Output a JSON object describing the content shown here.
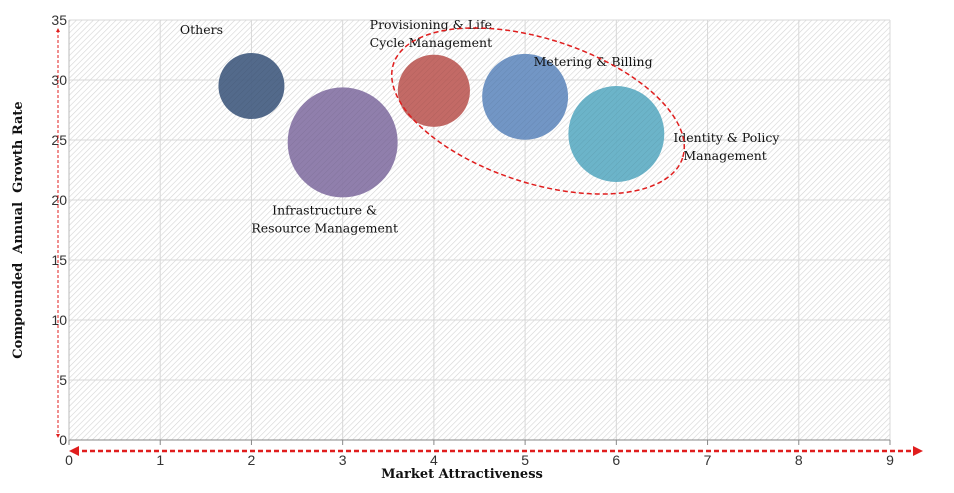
{
  "chart_data": {
    "type": "bubble",
    "xlabel": "Market Attractiveness",
    "ylabel": "Compounded  Annual  Growth Rate",
    "xlim": [
      0,
      9
    ],
    "ylim": [
      0,
      35
    ],
    "xticks": [
      "0",
      "1",
      "2",
      "3",
      "4",
      "5",
      "6",
      "7",
      "8",
      "9"
    ],
    "yticks": [
      "0",
      "5",
      "10",
      "15",
      "20",
      "25",
      "30",
      "35"
    ],
    "grid": true,
    "background": "diagonal hatch",
    "series": [
      {
        "name": "Others",
        "label_lines": [
          "Others"
        ],
        "x": 2,
        "y": 29.5,
        "size": 0.36,
        "color": "#4a6285"
      },
      {
        "name": "Infrastructure & Resource Management",
        "label_lines": [
          "Infrastructure &",
          "Resource Management"
        ],
        "x": 3,
        "y": 24.8,
        "size": 1.0,
        "color": "#8a78a8"
      },
      {
        "name": "Provisioning & Life Cycle Management",
        "label_lines": [
          "Provisioning & Life",
          "Cycle Management"
        ],
        "x": 4,
        "y": 29.1,
        "size": 0.43,
        "color": "#c0625e"
      },
      {
        "name": "Metering & Billing",
        "label_lines": [
          "Metering & Billing"
        ],
        "x": 5,
        "y": 28.6,
        "size": 0.61,
        "color": "#6a90c2"
      },
      {
        "name": "Identity & Policy Management",
        "label_lines": [
          "Identity & Policy",
          "Management"
        ],
        "x": 6,
        "y": 25.5,
        "size": 0.76,
        "color": "#64b0c6"
      }
    ],
    "highlight": {
      "style": "red dashed ellipse",
      "color": "#e01e1e",
      "covers": [
        "Provisioning & Life Cycle Management",
        "Metering & Billing",
        "Identity & Policy Management"
      ]
    },
    "axis_arrow_color": "#e01e1e"
  }
}
